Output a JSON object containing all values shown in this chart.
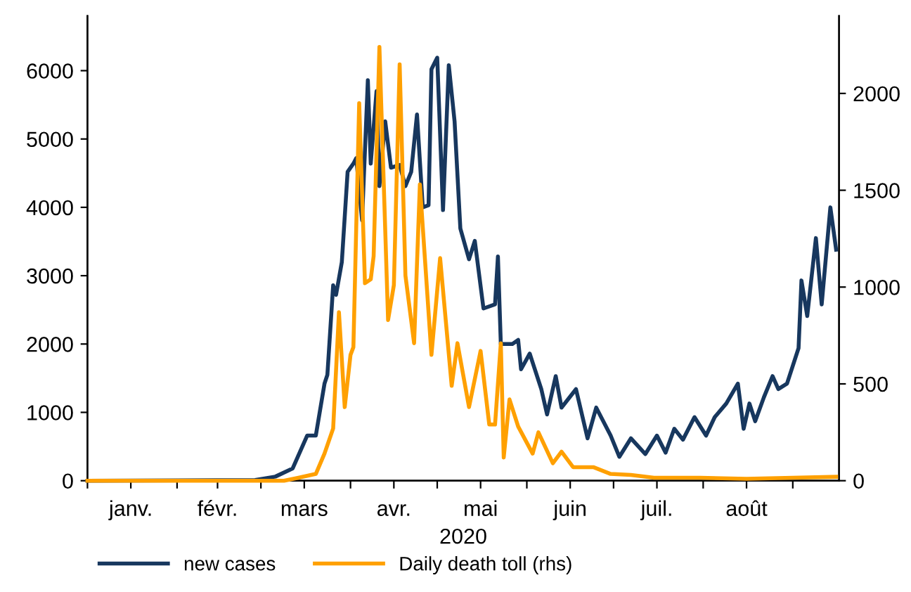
{
  "chart_data": {
    "type": "line",
    "xlabel": "2020",
    "legend": "bottom",
    "grid": false,
    "line_style": "solid",
    "marker": "none",
    "xlim": [
      "2020-01-01",
      "2020-09-17"
    ],
    "xticks": [
      {
        "value": "2020-01-01",
        "label": null
      },
      {
        "value": "2020-02-01",
        "label": null
      },
      {
        "value": "2020-03-01",
        "label": null
      },
      {
        "value": "2020-04-01",
        "label": null
      },
      {
        "value": "2020-05-01",
        "label": null
      },
      {
        "value": "2020-06-01",
        "label": null
      },
      {
        "value": "2020-07-01",
        "label": null
      },
      {
        "value": "2020-08-01",
        "label": null
      },
      {
        "value": "2020-09-01",
        "label": null
      },
      {
        "value": "2020-01-16",
        "label": "janv."
      },
      {
        "value": "2020-02-15",
        "label": "févr."
      },
      {
        "value": "2020-03-16",
        "label": "mars"
      },
      {
        "value": "2020-04-16",
        "label": "avr."
      },
      {
        "value": "2020-05-16",
        "label": "mai"
      },
      {
        "value": "2020-06-16",
        "label": "juin"
      },
      {
        "value": "2020-07-16",
        "label": "juil."
      },
      {
        "value": "2020-08-16",
        "label": "août"
      }
    ],
    "ylim": [
      0,
      6800
    ],
    "yticks": [
      0,
      1000,
      2000,
      3000,
      4000,
      5000,
      6000
    ],
    "y2lim": [
      0,
      2400
    ],
    "y2ticks": [
      0,
      500,
      1000,
      1500,
      2000
    ],
    "series": [
      {
        "name": "new cases",
        "color": "#17375e",
        "x": [
          "2020-01-01",
          "2020-02-28",
          "2020-03-06",
          "2020-03-12",
          "2020-03-17",
          "2020-03-20",
          "2020-03-23",
          "2020-03-24",
          "2020-03-26",
          "2020-03-27",
          "2020-03-29",
          "2020-03-31",
          "2020-04-02",
          "2020-04-03",
          "2020-04-05",
          "2020-04-07",
          "2020-04-08",
          "2020-04-10",
          "2020-04-11",
          "2020-04-13",
          "2020-04-15",
          "2020-04-18",
          "2020-04-20",
          "2020-04-22",
          "2020-04-24",
          "2020-04-26",
          "2020-04-28",
          "2020-04-29",
          "2020-05-01",
          "2020-05-03",
          "2020-05-05",
          "2020-05-07",
          "2020-05-09",
          "2020-05-12",
          "2020-05-14",
          "2020-05-17",
          "2020-05-21",
          "2020-05-22",
          "2020-05-23",
          "2020-05-27",
          "2020-05-29",
          "2020-05-30",
          "2020-06-02",
          "2020-06-06",
          "2020-06-08",
          "2020-06-11",
          "2020-06-13",
          "2020-06-18",
          "2020-06-22",
          "2020-06-25",
          "2020-06-30",
          "2020-07-03",
          "2020-07-07",
          "2020-07-12",
          "2020-07-16",
          "2020-07-19",
          "2020-07-22",
          "2020-07-25",
          "2020-07-29",
          "2020-08-02",
          "2020-08-05",
          "2020-08-09",
          "2020-08-13",
          "2020-08-15",
          "2020-08-17",
          "2020-08-19",
          "2020-08-22",
          "2020-08-25",
          "2020-08-27",
          "2020-08-30",
          "2020-09-03",
          "2020-09-04",
          "2020-09-06",
          "2020-09-09",
          "2020-09-11",
          "2020-09-14",
          "2020-09-16"
        ],
        "values": [
          0,
          10,
          60,
          180,
          660,
          660,
          1420,
          1550,
          2860,
          2720,
          3200,
          4520,
          4640,
          4720,
          3810,
          5860,
          4640,
          5700,
          4310,
          5260,
          4580,
          4620,
          4310,
          4520,
          5360,
          4000,
          4030,
          6020,
          6190,
          3960,
          6080,
          5260,
          3690,
          3240,
          3510,
          2520,
          2580,
          3280,
          2000,
          2000,
          2060,
          1630,
          1860,
          1340,
          970,
          1530,
          1070,
          1340,
          620,
          1070,
          660,
          350,
          620,
          390,
          660,
          410,
          760,
          600,
          930,
          660,
          930,
          1130,
          1420,
          760,
          1130,
          870,
          1220,
          1530,
          1340,
          1420,
          1940,
          2930,
          2410,
          3550,
          2580,
          4000,
          3380
        ]
      },
      {
        "name": "Daily death toll (rhs)",
        "color": "#ffa000",
        "axis": "y2",
        "x": [
          "2020-01-01",
          "2020-03-09",
          "2020-03-14",
          "2020-03-20",
          "2020-03-23",
          "2020-03-26",
          "2020-03-28",
          "2020-03-30",
          "2020-04-01",
          "2020-04-02",
          "2020-04-04",
          "2020-04-06",
          "2020-04-08",
          "2020-04-09",
          "2020-04-11",
          "2020-04-14",
          "2020-04-16",
          "2020-04-18",
          "2020-04-20",
          "2020-04-23",
          "2020-04-25",
          "2020-04-29",
          "2020-05-02",
          "2020-05-06",
          "2020-05-08",
          "2020-05-12",
          "2020-05-16",
          "2020-05-19",
          "2020-05-21",
          "2020-05-23",
          "2020-05-24",
          "2020-05-26",
          "2020-05-29",
          "2020-06-03",
          "2020-06-05",
          "2020-06-10",
          "2020-06-13",
          "2020-06-17",
          "2020-06-24",
          "2020-06-30",
          "2020-07-07",
          "2020-07-15",
          "2020-07-31",
          "2020-08-16",
          "2020-09-01",
          "2020-09-16"
        ],
        "values": [
          0,
          0,
          15,
          35,
          140,
          270,
          870,
          380,
          650,
          690,
          1950,
          1020,
          1040,
          1160,
          2240,
          830,
          1010,
          2150,
          1060,
          710,
          1530,
          650,
          1150,
          490,
          710,
          380,
          670,
          290,
          290,
          710,
          120,
          420,
          280,
          140,
          250,
          90,
          150,
          70,
          70,
          35,
          30,
          15,
          15,
          10,
          15,
          20
        ]
      }
    ]
  }
}
